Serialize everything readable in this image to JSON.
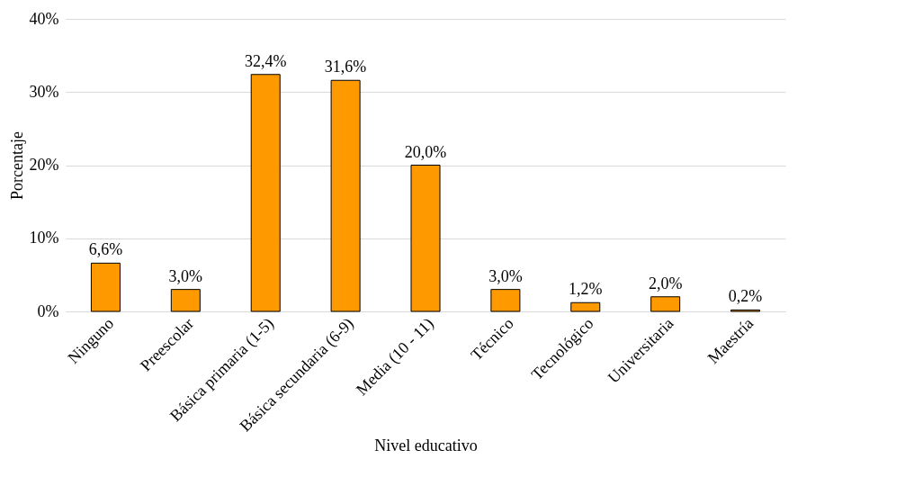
{
  "chart_data": {
    "type": "bar",
    "xlabel": "Nivel educativo",
    "ylabel": "Porcentaje",
    "categories": [
      "Ninguno",
      "Preescolar",
      "Básica primaria (1-5)",
      "Básica secundaria (6-9)",
      "Media (10 - 11)",
      "Técnico",
      "Tecnológico",
      "Universitaria",
      "Maestría"
    ],
    "values": [
      6.6,
      3.0,
      32.4,
      31.6,
      20.0,
      3.0,
      1.2,
      2.0,
      0.2
    ],
    "value_labels": [
      "6,6%",
      "3,0%",
      "32,4%",
      "31,6%",
      "20,0%",
      "3,0%",
      "1,2%",
      "2,0%",
      "0,2%"
    ],
    "color": "#ff9900",
    "ylim": [
      0,
      40
    ],
    "yticks": [
      {
        "value": 0,
        "label": "0%"
      },
      {
        "value": 10,
        "label": "10%"
      },
      {
        "value": 20,
        "label": "20%"
      },
      {
        "value": 30,
        "label": "30%"
      },
      {
        "value": 40,
        "label": "40%"
      }
    ],
    "grid": "y"
  }
}
